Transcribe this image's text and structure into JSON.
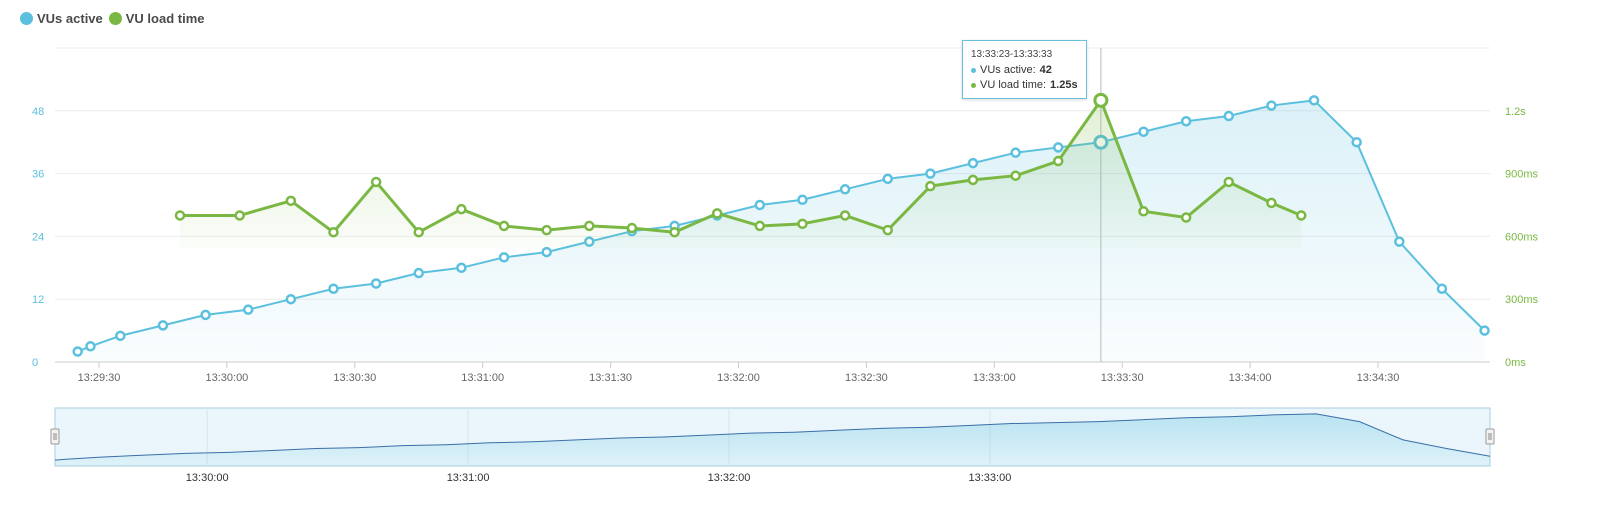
{
  "legend": [
    {
      "name": "VUs active",
      "color": "#5bc0de"
    },
    {
      "name": "VU load time",
      "color": "#7ab843"
    }
  ],
  "tooltip": {
    "title": "13:33:23-13:33:33",
    "rows": [
      {
        "label": "VUs active: ",
        "value": "42",
        "color": "#5bc0de"
      },
      {
        "label": "VU load time: ",
        "value": "1.25s",
        "color": "#7ab843"
      }
    ]
  },
  "chart_data": {
    "type": "line",
    "x_ticks": [
      "13:29:30",
      "13:30:00",
      "13:30:30",
      "13:31:00",
      "13:31:30",
      "13:32:00",
      "13:32:30",
      "13:33:00",
      "13:33:30",
      "13:34:00",
      "13:34:30"
    ],
    "y_left": {
      "ticks": [
        "0",
        "12",
        "24",
        "36",
        "48"
      ],
      "range": [
        0,
        60
      ],
      "color": "#5bc0de"
    },
    "y_right": {
      "ticks": [
        "0ms",
        "300ms",
        "600ms",
        "900ms",
        "1.2s"
      ],
      "range": [
        0,
        1500
      ],
      "color": "#7ab843"
    },
    "grid": true,
    "series": [
      {
        "name": "VUs active",
        "axis": "left",
        "color": "#5bc0de",
        "x": [
          "13:29:25",
          "13:29:28",
          "13:29:35",
          "13:29:45",
          "13:29:55",
          "13:30:05",
          "13:30:15",
          "13:30:25",
          "13:30:35",
          "13:30:45",
          "13:30:55",
          "13:31:05",
          "13:31:15",
          "13:31:25",
          "13:31:35",
          "13:31:45",
          "13:31:55",
          "13:32:05",
          "13:32:15",
          "13:32:25",
          "13:32:35",
          "13:32:45",
          "13:32:55",
          "13:33:05",
          "13:33:15",
          "13:33:25",
          "13:33:35",
          "13:33:45",
          "13:33:55",
          "13:34:05",
          "13:34:15",
          "13:34:25",
          "13:34:35",
          "13:34:45",
          "13:34:55"
        ],
        "values": [
          2,
          3,
          5,
          7,
          9,
          10,
          12,
          14,
          15,
          17,
          18,
          20,
          21,
          23,
          25,
          26,
          28,
          30,
          31,
          33,
          35,
          36,
          38,
          40,
          41,
          42,
          44,
          46,
          47,
          49,
          50,
          42,
          23,
          14,
          6
        ]
      },
      {
        "name": "VU load time",
        "axis": "right",
        "color": "#7ab843",
        "x": [
          "13:29:49",
          "13:30:03",
          "13:30:15",
          "13:30:25",
          "13:30:35",
          "13:30:45",
          "13:30:55",
          "13:31:05",
          "13:31:15",
          "13:31:25",
          "13:31:35",
          "13:31:45",
          "13:31:55",
          "13:32:05",
          "13:32:15",
          "13:32:25",
          "13:32:35",
          "13:32:45",
          "13:32:55",
          "13:33:05",
          "13:33:15",
          "13:33:25",
          "13:33:35",
          "13:33:45",
          "13:33:55",
          "13:34:05",
          "13:34:12"
        ],
        "values": [
          700,
          700,
          770,
          620,
          860,
          620,
          730,
          650,
          630,
          650,
          640,
          620,
          710,
          650,
          660,
          700,
          630,
          840,
          870,
          890,
          960,
          1250,
          720,
          690,
          860,
          760,
          700
        ]
      }
    ],
    "navigator": {
      "x_ticks": [
        "13:30:00",
        "13:31:00",
        "13:32:00",
        "13:33:00"
      ]
    }
  }
}
